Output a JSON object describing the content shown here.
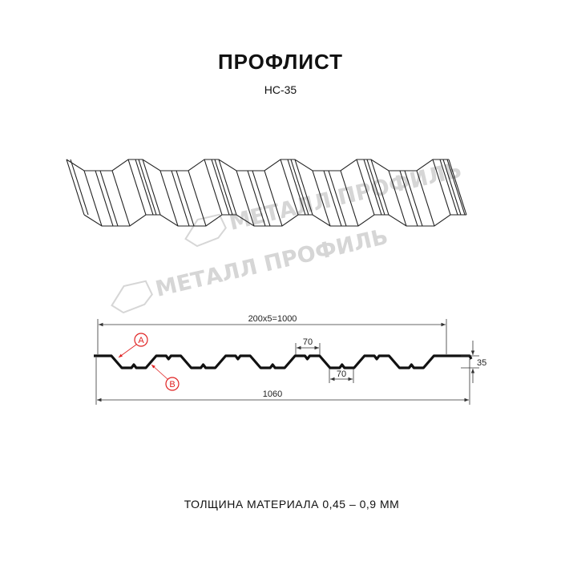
{
  "header": {
    "title": "ПРОФЛИСТ",
    "model": "НС-35"
  },
  "watermark": {
    "text": "МЕТАЛЛ ПРОФИЛЬ"
  },
  "section": {
    "dim_pitch": "200x5=1000",
    "dim_total": "1060",
    "dim_height": "35",
    "dim_crest": "70",
    "dim_trough": "70",
    "marker_a": "A",
    "marker_b": "B",
    "marker_color": "#e02020"
  },
  "footer": {
    "thickness": "ТОЛЩИНА МАТЕРИАЛА 0,45 – 0,9 ММ"
  }
}
